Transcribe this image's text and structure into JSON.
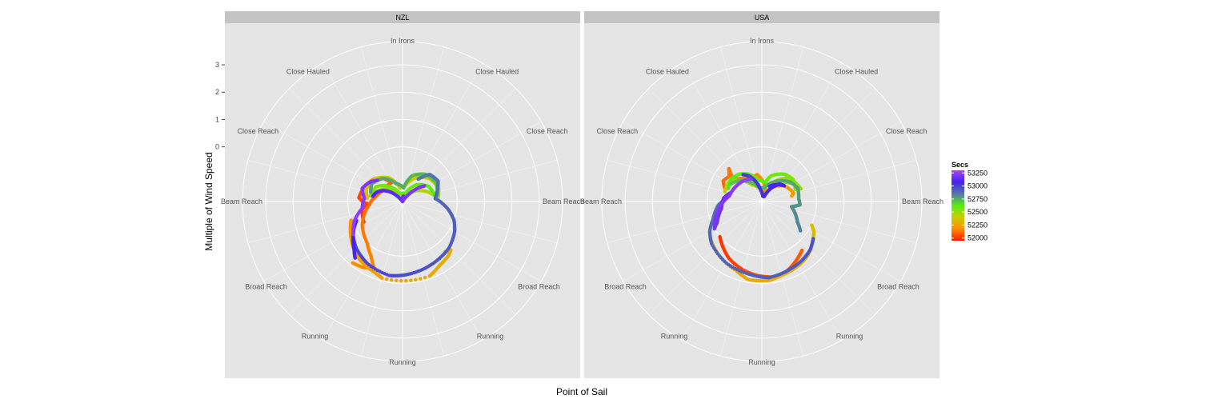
{
  "chart_data": {
    "type": "scatter",
    "coord": "polar",
    "facets": [
      "NZL",
      "USA"
    ],
    "xlabel": "Point of Sail",
    "ylabel": "Multiple of Wind Speed",
    "y_ticks": [
      "3",
      "2",
      "1",
      "0"
    ],
    "y_tick_values": [
      3,
      2,
      1,
      0
    ],
    "r_range": [
      -2,
      3.85
    ],
    "angle_labels": [
      {
        "deg": 0,
        "label": "In Irons"
      },
      {
        "deg": 36,
        "label": "Close Hauled"
      },
      {
        "deg": 324,
        "label": "Close Hauled"
      },
      {
        "deg": 64,
        "label": "Close Reach"
      },
      {
        "deg": 296,
        "label": "Close Reach"
      },
      {
        "deg": 90,
        "label": "Beam Reach"
      },
      {
        "deg": 270,
        "label": "Beam Reach"
      },
      {
        "deg": 122,
        "label": "Broad Reach"
      },
      {
        "deg": 238,
        "label": "Broad Reach"
      },
      {
        "deg": 147,
        "label": "Running"
      },
      {
        "deg": 213,
        "label": "Running"
      },
      {
        "deg": 180,
        "label": "Running"
      }
    ],
    "legend": {
      "title": "Secs",
      "placement": "right",
      "labels": [
        "53250",
        "53000",
        "52750",
        "52500",
        "52250",
        "52000"
      ],
      "values": [
        53250,
        53000,
        52750,
        52500,
        52250,
        52000
      ],
      "range": [
        51950,
        53300
      ],
      "colors": [
        "#ff1a00",
        "#ff8c00",
        "#cccc00",
        "#55ee11",
        "#5577aa",
        "#4422ee",
        "#aa44ff"
      ]
    },
    "series": [
      {
        "facet": "NZL",
        "pts": [
          [
            -118,
            -0.4,
            52000
          ],
          [
            -100,
            -0.5,
            52010
          ],
          [
            -95,
            -0.8,
            52020
          ],
          [
            -92,
            -0.6,
            52030
          ],
          [
            -85,
            -0.4,
            52040
          ],
          [
            -70,
            -0.5,
            52050
          ],
          [
            -60,
            -0.6,
            52060
          ],
          [
            -50,
            -0.7,
            52070
          ],
          [
            -40,
            -0.9,
            52080
          ],
          [
            -30,
            -1.2,
            52090
          ],
          [
            -60,
            -1.2,
            52100
          ],
          [
            -80,
            -1.0,
            52110
          ],
          [
            -100,
            -0.7,
            52120
          ],
          [
            -120,
            -0.3,
            52130
          ],
          [
            -140,
            0.0,
            52140
          ],
          [
            -150,
            0.3,
            52150
          ],
          [
            -156,
            0.6,
            52160
          ],
          [
            -150,
            0.8,
            52170
          ],
          [
            -140,
            0.9,
            52180
          ]
        ]
      },
      {
        "facet": "NZL",
        "pts": [
          [
            -110,
            0.0,
            52200
          ],
          [
            -120,
            0.2,
            52210
          ],
          [
            -130,
            0.4,
            52220
          ],
          [
            -140,
            0.6,
            52230
          ],
          [
            -150,
            0.7,
            52240
          ],
          [
            -160,
            0.8,
            52250
          ],
          [
            -165,
            0.9,
            52260
          ],
          [
            160,
            0.9,
            52270
          ],
          [
            150,
            0.7,
            52280
          ],
          [
            140,
            0.6,
            52290
          ],
          [
            135,
            0.5,
            52300
          ],
          [
            140,
            0.4,
            52310
          ]
        ]
      },
      {
        "facet": "NZL",
        "pts": [
          [
            -85,
            -0.7,
            52350
          ],
          [
            -70,
            -0.6,
            52360
          ],
          [
            -50,
            -0.7,
            52370
          ],
          [
            -30,
            -1.0,
            52380
          ],
          [
            -10,
            -1.5,
            52390
          ],
          [
            10,
            -1.4,
            52400
          ],
          [
            30,
            -1.0,
            52410
          ],
          [
            50,
            -0.7,
            52420
          ],
          [
            70,
            -0.6,
            52430
          ],
          [
            85,
            -0.7,
            52440
          ],
          [
            75,
            -0.9,
            52450
          ],
          [
            55,
            -1.3,
            52460
          ],
          [
            35,
            -1.7,
            52470
          ],
          [
            15,
            -1.8,
            52480
          ],
          [
            -15,
            -1.8,
            52490
          ],
          [
            -35,
            -1.6,
            52500
          ],
          [
            -55,
            -1.2,
            52510
          ],
          [
            -75,
            -0.9,
            52520
          ]
        ]
      },
      {
        "facet": "NZL",
        "pts": [
          [
            -80,
            -0.8,
            52550
          ],
          [
            -60,
            -0.9,
            52560
          ],
          [
            -40,
            -1.3,
            52570
          ],
          [
            -20,
            -1.7,
            52580
          ],
          [
            20,
            -1.7,
            52590
          ],
          [
            40,
            -1.2,
            52600
          ],
          [
            60,
            -0.9,
            52610
          ],
          [
            80,
            -0.8,
            52620
          ]
        ]
      },
      {
        "facet": "NZL",
        "pts": [
          [
            80,
            -0.7,
            52700
          ],
          [
            60,
            -0.6,
            52710
          ],
          [
            40,
            -0.7,
            52720
          ],
          [
            20,
            -1.0,
            52730
          ],
          [
            5,
            -1.5,
            52740
          ],
          [
            -20,
            -1.3,
            52750
          ],
          [
            -40,
            -0.9,
            52760
          ],
          [
            -60,
            -0.7,
            52770
          ],
          [
            -75,
            -0.8,
            52780
          ]
        ]
      },
      {
        "facet": "NZL",
        "pts": [
          [
            35,
            -1.0,
            52850
          ],
          [
            45,
            -0.6,
            52860
          ],
          [
            60,
            -0.5,
            52870
          ],
          [
            75,
            -0.7,
            52880
          ],
          [
            85,
            -0.8,
            52890
          ],
          [
            100,
            -0.3,
            52900
          ],
          [
            110,
            0.0,
            52910
          ],
          [
            120,
            0.2,
            52920
          ],
          [
            135,
            0.4,
            52930
          ],
          [
            150,
            0.5,
            52940
          ],
          [
            165,
            0.6,
            52950
          ],
          [
            180,
            0.7,
            52960
          ],
          [
            -170,
            0.75,
            52970
          ],
          [
            -150,
            0.6,
            52980
          ],
          [
            -135,
            0.4,
            52990
          ],
          [
            -125,
            0.2,
            53000
          ]
        ]
      },
      {
        "facet": "NZL",
        "pts": [
          [
            -140,
            0.7,
            53050
          ],
          [
            -135,
            0.5,
            53060
          ],
          [
            -130,
            0.35,
            53070
          ],
          [
            -125,
            0.2,
            53080
          ],
          [
            -118,
            0.0,
            53090
          ],
          [
            -112,
            -0.2,
            53100
          ]
        ]
      },
      {
        "facet": "NZL",
        "pts": [
          [
            -80,
            -0.9,
            53100
          ],
          [
            -70,
            -1.0,
            53110
          ],
          [
            -60,
            -1.2,
            53120
          ],
          [
            -50,
            -1.5,
            53130
          ],
          [
            -40,
            -1.9,
            53140
          ],
          [
            -20,
            -2.0,
            53150
          ],
          [
            -5,
            -1.9,
            53160
          ],
          [
            10,
            -1.8,
            53170
          ],
          [
            20,
            -1.9,
            53180
          ],
          [
            30,
            -2.0,
            53190
          ],
          [
            40,
            -1.7,
            53200
          ],
          [
            50,
            -1.2,
            53210
          ],
          [
            55,
            -1.0,
            53220
          ]
        ]
      },
      {
        "facet": "NZL",
        "pts": [
          [
            -50,
            -0.8,
            53200
          ],
          [
            -60,
            -0.6,
            53210
          ],
          [
            -72,
            -0.45,
            53220
          ],
          [
            -85,
            -0.6,
            53230
          ],
          [
            -100,
            -0.5,
            53240
          ],
          [
            -112,
            -0.1,
            53250
          ],
          [
            -125,
            0.2,
            53260
          ]
        ]
      },
      {
        "facet": "USA",
        "pts": [
          [
            -130,
            0.0,
            52000
          ],
          [
            -140,
            0.2,
            52010
          ],
          [
            -150,
            0.4,
            52020
          ],
          [
            -165,
            0.6,
            52030
          ],
          [
            -175,
            0.7,
            52040
          ],
          [
            170,
            0.8,
            52050
          ],
          [
            160,
            0.7,
            52060
          ],
          [
            150,
            0.5,
            52070
          ],
          [
            145,
            0.4,
            52080
          ],
          [
            140,
            0.3,
            52090
          ]
        ]
      },
      {
        "facet": "USA",
        "pts": [
          [
            -72,
            -0.6,
            52100
          ],
          [
            -62,
            -0.4,
            52110
          ],
          [
            -52,
            -0.5,
            52120
          ],
          [
            -45,
            -0.3,
            52130
          ],
          [
            -52,
            -0.7,
            52140
          ],
          [
            -40,
            -0.9,
            52150
          ],
          [
            -25,
            -1.1,
            52160
          ],
          [
            -10,
            -1.0,
            52170
          ],
          [
            5,
            -1.3,
            52180
          ],
          [
            20,
            -1.7,
            52190
          ],
          [
            35,
            -1.4,
            52200
          ],
          [
            55,
            -1.0,
            52210
          ],
          [
            75,
            -0.8,
            52220
          ],
          [
            80,
            -0.9,
            52230
          ]
        ]
      },
      {
        "facet": "USA",
        "pts": [
          [
            -125,
            0.3,
            52250
          ],
          [
            -140,
            0.5,
            52260
          ],
          [
            -160,
            0.7,
            52270
          ],
          [
            -170,
            0.9,
            52280
          ],
          [
            175,
            0.9,
            52290
          ],
          [
            165,
            0.8,
            52300
          ],
          [
            150,
            0.7,
            52310
          ],
          [
            140,
            0.6,
            52320
          ],
          [
            130,
            0.4,
            52330
          ],
          [
            120,
            0.2,
            52340
          ],
          [
            115,
            0.0,
            52350
          ]
        ]
      },
      {
        "facet": "USA",
        "pts": [
          [
            -75,
            -0.6,
            52400
          ],
          [
            -60,
            -0.6,
            52410
          ],
          [
            -45,
            -0.9,
            52420
          ],
          [
            -30,
            -1.3,
            52430
          ],
          [
            -10,
            -1.5,
            52440
          ],
          [
            10,
            -1.5,
            52450
          ],
          [
            30,
            -1.2,
            52460
          ],
          [
            45,
            -0.8,
            52470
          ],
          [
            60,
            -0.6,
            52480
          ],
          [
            72,
            -0.5,
            52490
          ],
          [
            60,
            -0.7,
            52500
          ],
          [
            45,
            -1.0,
            52510
          ],
          [
            30,
            -1.4,
            52520
          ]
        ]
      },
      {
        "facet": "USA",
        "pts": [
          [
            70,
            -0.7,
            52550
          ],
          [
            55,
            -0.6,
            52560
          ],
          [
            40,
            -0.7,
            52570
          ],
          [
            20,
            -1.0,
            52580
          ],
          [
            10,
            -1.3,
            52590
          ],
          [
            -10,
            -1.2,
            52600
          ],
          [
            -25,
            -0.9,
            52610
          ],
          [
            -40,
            -0.7,
            52620
          ],
          [
            -55,
            -0.6,
            52630
          ],
          [
            -70,
            -0.7,
            52640
          ]
        ]
      },
      {
        "facet": "USA",
        "pts": [
          [
            -60,
            -0.7,
            52700
          ],
          [
            -45,
            -0.9,
            52710
          ],
          [
            -30,
            -1.2,
            52720
          ],
          [
            -10,
            -1.5,
            52730
          ],
          [
            10,
            -1.5,
            52740
          ],
          [
            35,
            -1.1,
            52750
          ],
          [
            55,
            -0.75,
            52760
          ],
          [
            70,
            -0.6,
            52770
          ],
          [
            85,
            -0.65,
            52780
          ],
          [
            95,
            -0.6,
            52790
          ],
          [
            100,
            -0.9,
            52800
          ],
          [
            110,
            -0.7,
            52810
          ],
          [
            120,
            -0.5,
            52820
          ],
          [
            128,
            -0.2,
            52830
          ]
        ]
      },
      {
        "facet": "USA",
        "pts": [
          [
            -85,
            -0.7,
            52850
          ],
          [
            -95,
            -0.4,
            52860
          ],
          [
            -110,
            -0.1,
            52870
          ],
          [
            -120,
            0.2,
            52880
          ],
          [
            -130,
            0.4,
            52890
          ],
          [
            -150,
            0.6,
            52900
          ],
          [
            -170,
            0.7,
            52910
          ],
          [
            175,
            0.8,
            52920
          ],
          [
            160,
            0.7,
            52930
          ],
          [
            145,
            0.6,
            52940
          ],
          [
            135,
            0.5,
            52950
          ],
          [
            125,
            0.3,
            52960
          ]
        ]
      },
      {
        "facet": "USA",
        "pts": [
          [
            -35,
            -0.8,
            53000
          ],
          [
            -25,
            -1.0,
            53010
          ],
          [
            -15,
            -1.3,
            53020
          ],
          [
            -5,
            -1.6,
            53030
          ],
          [
            10,
            -1.8,
            53040
          ],
          [
            25,
            -1.8,
            53050
          ],
          [
            35,
            -1.4,
            53060
          ],
          [
            45,
            -1.1,
            53070
          ],
          [
            55,
            -1.0,
            53080
          ],
          [
            40,
            -1.2,
            53090
          ],
          [
            25,
            -1.4,
            53100
          ]
        ]
      },
      {
        "facet": "USA",
        "pts": [
          [
            -75,
            -0.8,
            53150
          ],
          [
            -85,
            -0.6,
            53160
          ],
          [
            -100,
            -0.5,
            53170
          ],
          [
            -115,
            -0.2,
            53180
          ],
          [
            -120,
            0.0,
            53190
          ],
          [
            -110,
            -0.2,
            53200
          ],
          [
            -95,
            -0.5,
            53210
          ],
          [
            -80,
            -0.8,
            53220
          ],
          [
            -60,
            -0.9,
            53230
          ],
          [
            -40,
            -1.0,
            53240
          ],
          [
            -25,
            -1.1,
            53250
          ]
        ]
      }
    ]
  }
}
